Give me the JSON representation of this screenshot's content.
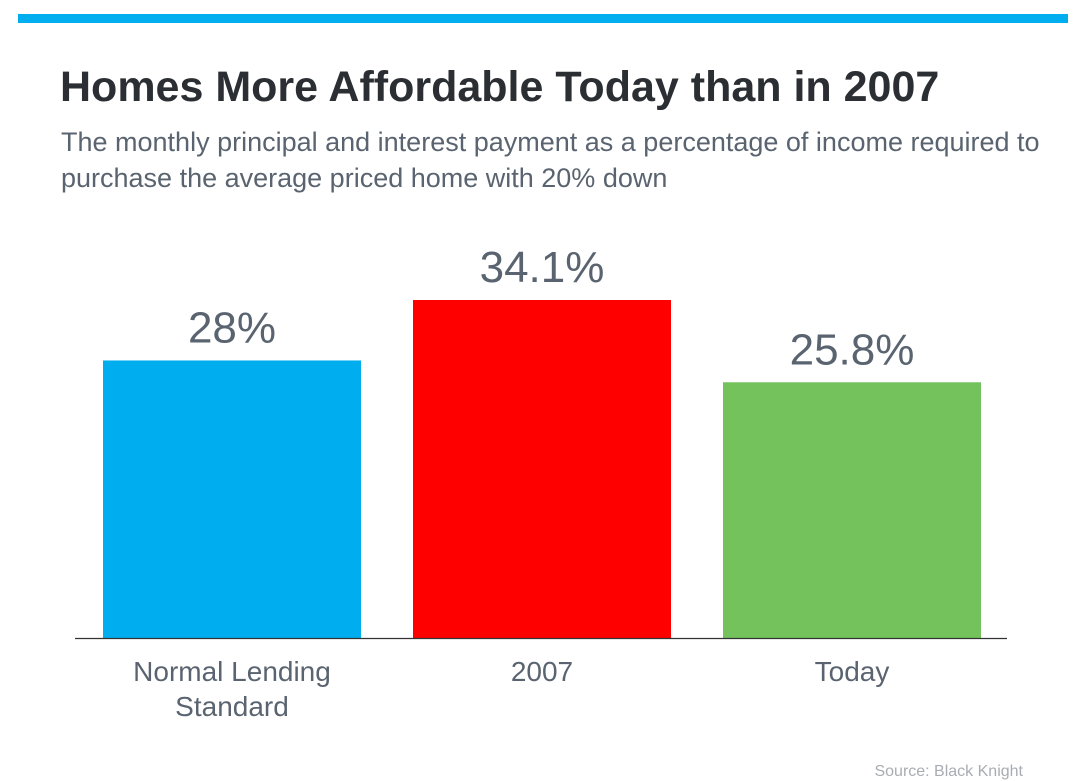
{
  "colors": {
    "accent_bar": "#00AEEF",
    "title": "#2b2f33",
    "text": "#5a6470",
    "source": "#a8adb3",
    "axis": "#333333"
  },
  "header": {
    "title": "Homes More Affordable Today than in 2007",
    "subtitle": "The monthly principal and interest payment as a percentage of income required to purchase the average priced home with 20% down"
  },
  "footer": {
    "source": "Source: Black Knight"
  },
  "chart_data": {
    "type": "bar",
    "categories": [
      "Normal Lending Standard",
      "2007",
      "Today"
    ],
    "category_lines": [
      [
        "Normal Lending",
        "Standard"
      ],
      [
        "2007"
      ],
      [
        "Today"
      ]
    ],
    "values": [
      28,
      34.1,
      25.8
    ],
    "value_labels": [
      "28%",
      "34.1%",
      "25.8%"
    ],
    "bar_colors": [
      "#00AEEF",
      "#FF0000",
      "#73C25C"
    ],
    "unit": "%",
    "title": "Homes More Affordable Today than in 2007",
    "subtitle": "The monthly principal and interest payment as a percentage of income required to purchase the average priced home with 20% down",
    "xlabel": "",
    "ylabel": "",
    "ylim": [
      0,
      34.1
    ],
    "grid": false,
    "legend": "none"
  }
}
